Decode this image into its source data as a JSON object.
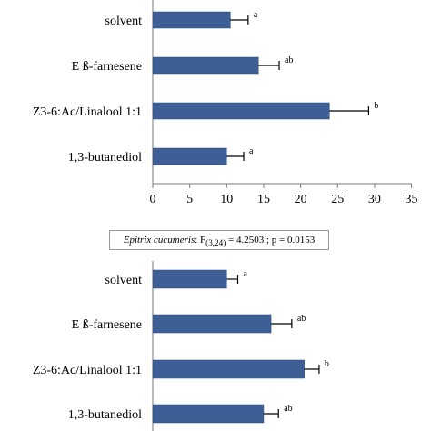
{
  "chart_data": [
    {
      "type": "bar",
      "orientation": "horizontal",
      "categories": [
        "solvent",
        "E ß-farnesene",
        "Z3-6:Ac/Linalool 1:1",
        "1,3-butanediol"
      ],
      "values": [
        10.5,
        14.3,
        23.9,
        10.0
      ],
      "errors": [
        2.4,
        2.8,
        5.3,
        2.3
      ],
      "significance": [
        "a",
        "ab",
        "b",
        "a"
      ],
      "xlim": [
        0,
        35
      ],
      "xticks": [
        "0",
        "5",
        "10",
        "15",
        "20",
        "25",
        "30",
        "35"
      ],
      "title": "",
      "xlabel": "",
      "ylabel": "",
      "grid": false
    },
    {
      "type": "bar",
      "orientation": "horizontal",
      "categories": [
        "solvent",
        "E ß-farnesene",
        "Z3-6:Ac/Linalool 1:1",
        "1,3-butanediol"
      ],
      "values": [
        10.0,
        16.0,
        20.5,
        15.0
      ],
      "errors": [
        1.5,
        2.8,
        2.0,
        2.0
      ],
      "significance": [
        "a",
        "ab",
        "b",
        "ab"
      ],
      "title": "",
      "xlabel": "",
      "ylabel": "",
      "grid": false
    }
  ],
  "stats": {
    "species": "Epitrix cucumeris",
    "test": ": F",
    "df": "(3,24)",
    "rest": " = 4.2503 ; p = 0.0153"
  },
  "colors": {
    "bar": "#3d5f95"
  }
}
